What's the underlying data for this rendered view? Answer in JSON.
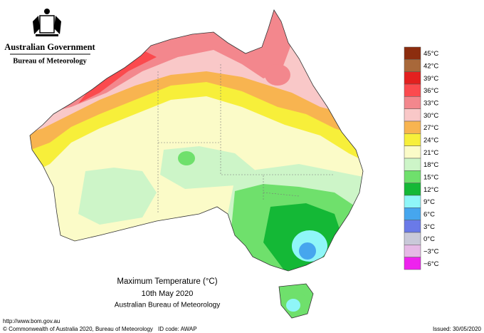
{
  "header": {
    "government": "Australian Government",
    "bureau": "Bureau of Meteorology"
  },
  "legend": [
    {
      "label": "45°C",
      "color": "#8c2d0e"
    },
    {
      "label": "42°C",
      "color": "#a8683a"
    },
    {
      "label": "39°C",
      "color": "#e3201f"
    },
    {
      "label": "36°C",
      "color": "#fb4a4e"
    },
    {
      "label": "33°C",
      "color": "#f3878d"
    },
    {
      "label": "30°C",
      "color": "#f9c8c8"
    },
    {
      "label": "27°C",
      "color": "#f8b450"
    },
    {
      "label": "24°C",
      "color": "#f7ef3a"
    },
    {
      "label": "21°C",
      "color": "#fbfbc8"
    },
    {
      "label": "18°C",
      "color": "#cdf5c8"
    },
    {
      "label": "15°C",
      "color": "#6fe06c"
    },
    {
      "label": "12°C",
      "color": "#14b836"
    },
    {
      "label": "9°C",
      "color": "#8ff6f8"
    },
    {
      "label": "6°C",
      "color": "#46a6ee"
    },
    {
      "label": "3°C",
      "color": "#6a7ae8"
    },
    {
      "label": "0°C",
      "color": "#c9c9d9"
    },
    {
      "label": "−3°C",
      "color": "#e6b9e6"
    },
    {
      "label": "−6°C",
      "color": "#ee22ee"
    }
  ],
  "caption": {
    "title": "Maximum Temperature (°C)",
    "date": "10th May 2020",
    "source": "Australian Bureau of Meteorology"
  },
  "footer": {
    "url": "http://www.bom.gov.au",
    "copyright": "© Commonwealth of Australia 2020, Bureau of Meteorology",
    "id_code": "ID code: AWAP",
    "issued": "Issued: 30/05/2020"
  }
}
